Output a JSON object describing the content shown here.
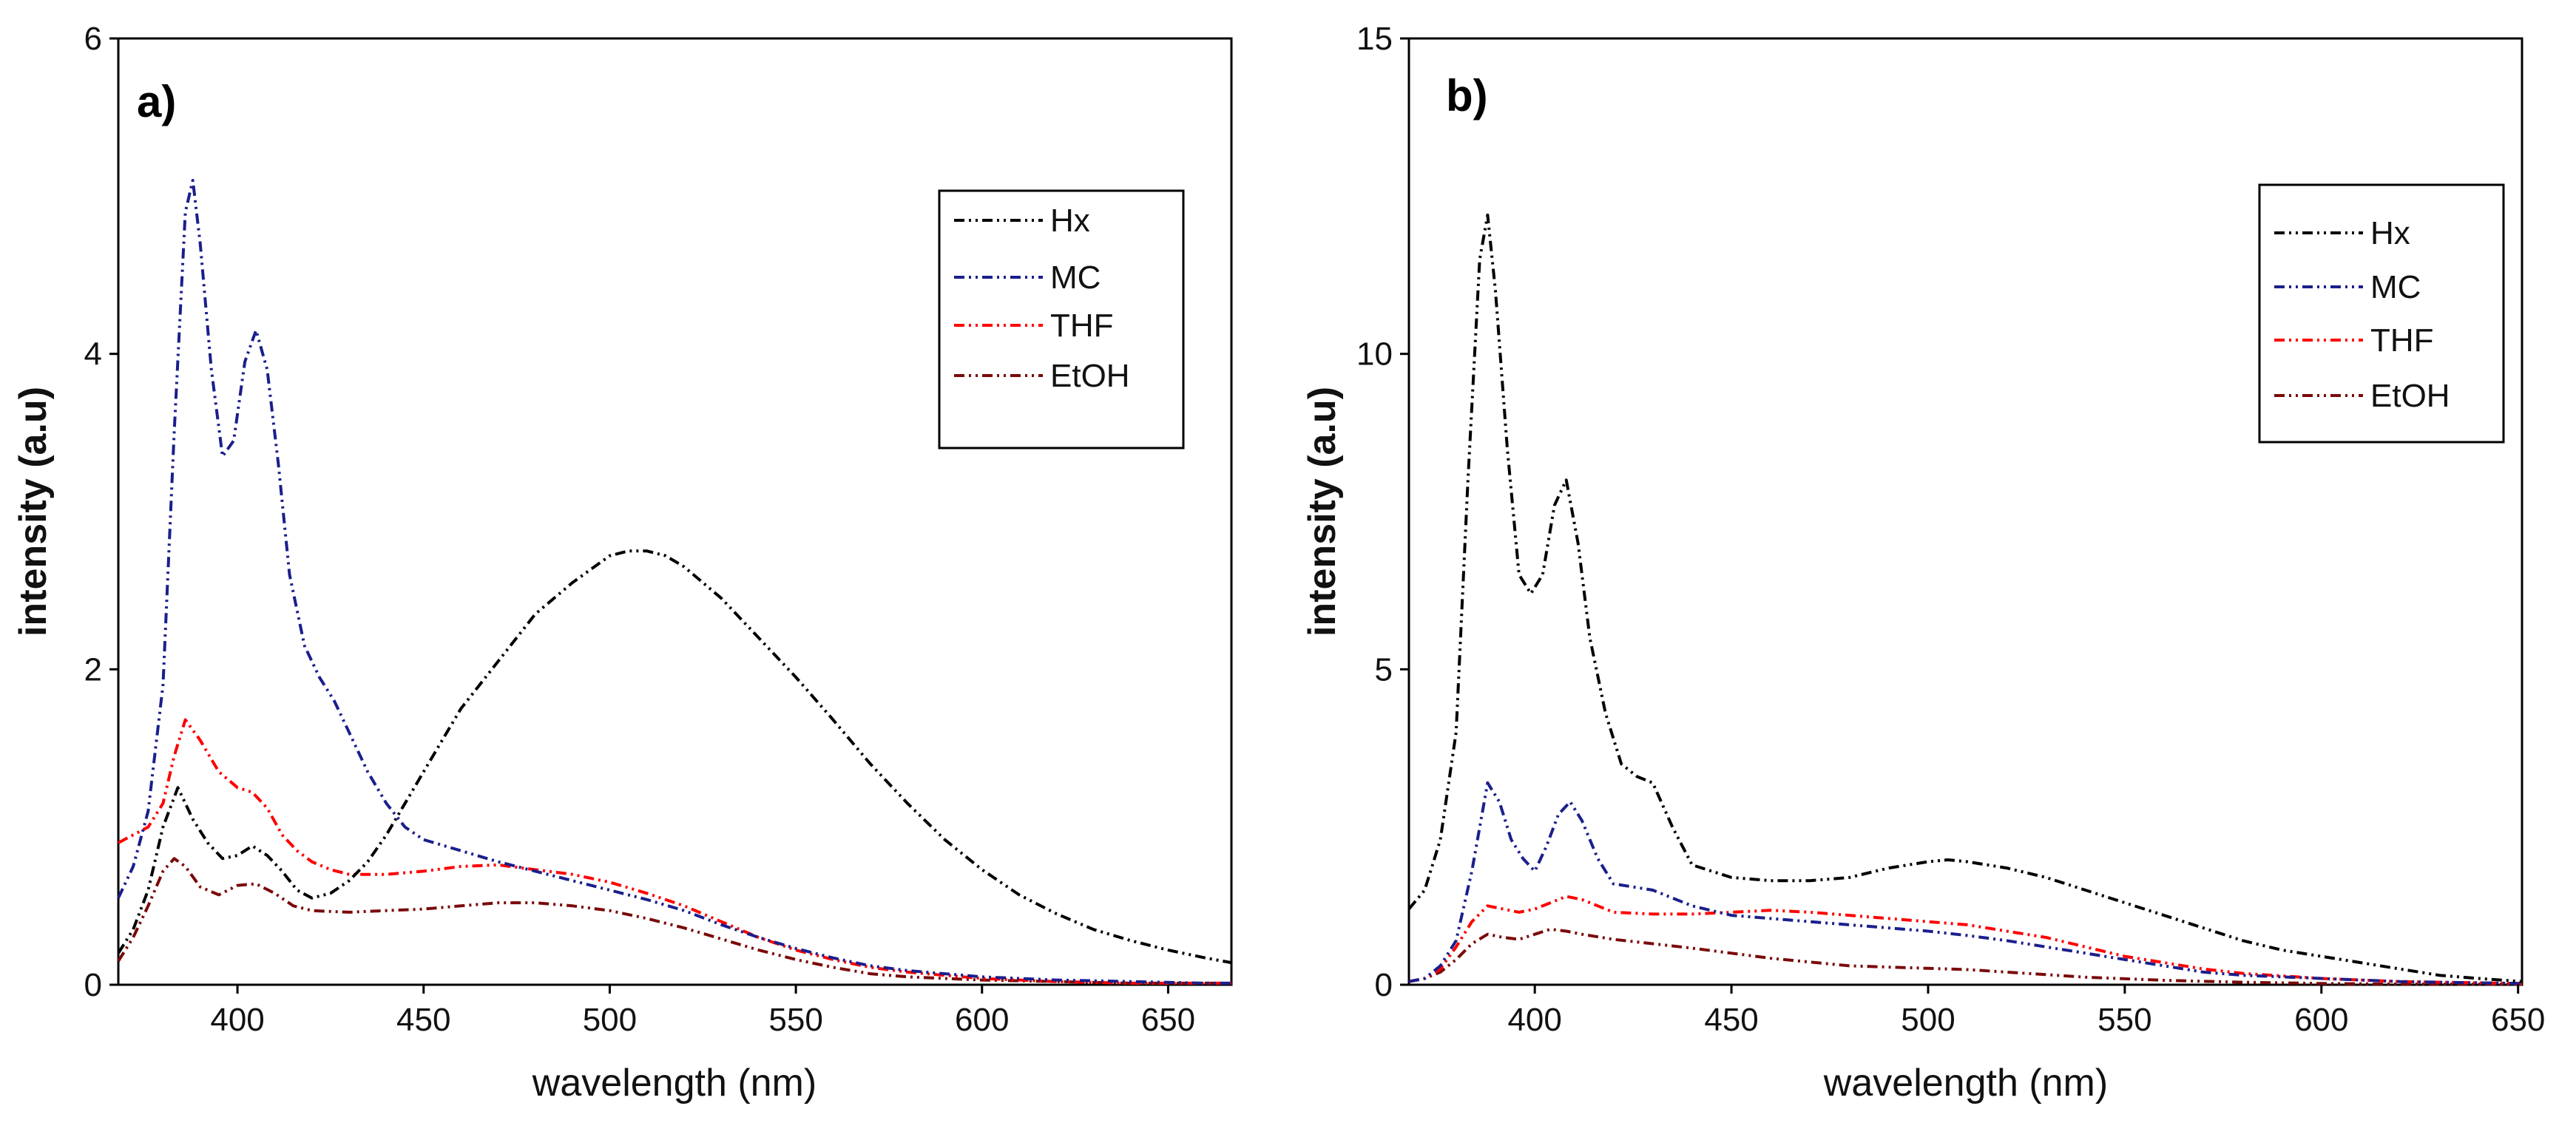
{
  "colors": {
    "Hx": "#000000",
    "MC": "#1a1f8c",
    "THF": "#ff0000",
    "EtOH": "#7a0a0a"
  },
  "chart_data": [
    {
      "type": "line",
      "panel_label": "a)",
      "xlabel": "wavelength (nm)",
      "ylabel": "intensity (a.u)",
      "xlim": [
        368,
        667
      ],
      "ylim": [
        0,
        6
      ],
      "xticks": [
        400,
        450,
        500,
        550,
        600,
        650
      ],
      "yticks": [
        0,
        2,
        4,
        6
      ],
      "x_tick_labels": [
        "400",
        "450",
        "500",
        "550",
        "600",
        "650"
      ],
      "y_tick_labels": [
        "0",
        "2",
        "4",
        "6"
      ],
      "legend": [
        "Hx",
        "MC",
        "THF",
        "EtOH"
      ],
      "series": [
        {
          "name": "Hx",
          "x": [
            368,
            372,
            376,
            380,
            384,
            388,
            392,
            396,
            400,
            404,
            408,
            412,
            416,
            420,
            425,
            430,
            435,
            440,
            445,
            450,
            455,
            460,
            470,
            480,
            490,
            500,
            505,
            510,
            515,
            520,
            530,
            540,
            550,
            560,
            570,
            580,
            590,
            600,
            610,
            620,
            630,
            640,
            650,
            660,
            667
          ],
          "y": [
            0.2,
            0.35,
            0.6,
            1.0,
            1.25,
            1.05,
            0.9,
            0.8,
            0.82,
            0.88,
            0.82,
            0.72,
            0.6,
            0.55,
            0.58,
            0.66,
            0.78,
            0.95,
            1.15,
            1.35,
            1.55,
            1.75,
            2.05,
            2.35,
            2.55,
            2.72,
            2.75,
            2.75,
            2.72,
            2.65,
            2.45,
            2.2,
            1.95,
            1.68,
            1.4,
            1.15,
            0.92,
            0.73,
            0.57,
            0.45,
            0.35,
            0.28,
            0.22,
            0.17,
            0.14
          ]
        },
        {
          "name": "MC",
          "x": [
            368,
            372,
            376,
            380,
            383,
            386,
            388,
            390,
            393,
            396,
            399,
            402,
            405,
            408,
            411,
            414,
            418,
            422,
            426,
            430,
            435,
            440,
            445,
            450,
            460,
            470,
            480,
            490,
            500,
            510,
            520,
            530,
            540,
            550,
            560,
            570,
            580,
            590,
            600,
            620,
            640,
            660,
            667
          ],
          "y": [
            0.55,
            0.75,
            1.1,
            1.9,
            3.5,
            4.9,
            5.1,
            4.7,
            3.9,
            3.35,
            3.45,
            3.95,
            4.15,
            3.9,
            3.3,
            2.6,
            2.15,
            1.95,
            1.8,
            1.6,
            1.35,
            1.15,
            1.0,
            0.92,
            0.85,
            0.78,
            0.72,
            0.66,
            0.6,
            0.54,
            0.47,
            0.38,
            0.3,
            0.23,
            0.17,
            0.12,
            0.09,
            0.07,
            0.05,
            0.03,
            0.02,
            0.01,
            0.01
          ]
        },
        {
          "name": "THF",
          "x": [
            368,
            372,
            376,
            380,
            383,
            386,
            390,
            395,
            400,
            404,
            408,
            412,
            416,
            420,
            425,
            430,
            440,
            450,
            460,
            470,
            480,
            490,
            500,
            510,
            520,
            530,
            540,
            550,
            560,
            570,
            580,
            590,
            600,
            620,
            640,
            660,
            667
          ],
          "y": [
            0.9,
            0.95,
            1.0,
            1.15,
            1.45,
            1.68,
            1.55,
            1.35,
            1.25,
            1.22,
            1.12,
            0.95,
            0.85,
            0.78,
            0.73,
            0.7,
            0.7,
            0.72,
            0.75,
            0.76,
            0.73,
            0.7,
            0.65,
            0.58,
            0.5,
            0.4,
            0.3,
            0.22,
            0.16,
            0.11,
            0.08,
            0.06,
            0.04,
            0.02,
            0.01,
            0.01,
            0.01
          ]
        },
        {
          "name": "EtOH",
          "x": [
            368,
            372,
            376,
            380,
            383,
            386,
            390,
            395,
            400,
            405,
            410,
            415,
            420,
            430,
            440,
            450,
            460,
            470,
            480,
            490,
            500,
            510,
            520,
            530,
            540,
            550,
            560,
            570,
            580,
            600,
            620,
            640,
            660,
            667
          ],
          "y": [
            0.15,
            0.3,
            0.5,
            0.72,
            0.8,
            0.75,
            0.62,
            0.57,
            0.63,
            0.64,
            0.58,
            0.5,
            0.47,
            0.46,
            0.47,
            0.48,
            0.5,
            0.52,
            0.52,
            0.5,
            0.47,
            0.42,
            0.36,
            0.29,
            0.22,
            0.16,
            0.11,
            0.07,
            0.05,
            0.03,
            0.02,
            0.01,
            0.01,
            0.01
          ]
        }
      ]
    },
    {
      "type": "line",
      "panel_label": "b)",
      "xlabel": "wavelength (nm)",
      "ylabel": "intensity (a.u)",
      "xlim": [
        368,
        651
      ],
      "ylim": [
        0,
        15
      ],
      "xticks": [
        400,
        450,
        500,
        550,
        600,
        650
      ],
      "yticks": [
        0,
        5,
        10,
        15
      ],
      "x_tick_labels": [
        "400",
        "450",
        "500",
        "550",
        "600",
        "650"
      ],
      "y_tick_labels": [
        "0",
        "5",
        "10",
        "15"
      ],
      "legend": [
        "Hx",
        "MC",
        "THF",
        "EtOH"
      ],
      "series": [
        {
          "name": "Hx",
          "x": [
            368,
            372,
            376,
            380,
            383,
            386,
            388,
            390,
            393,
            396,
            399,
            402,
            405,
            408,
            411,
            414,
            418,
            422,
            426,
            430,
            435,
            440,
            450,
            460,
            470,
            480,
            490,
            500,
            505,
            510,
            520,
            530,
            540,
            550,
            560,
            570,
            580,
            590,
            600,
            610,
            620,
            630,
            640,
            651
          ],
          "y": [
            1.2,
            1.5,
            2.3,
            4.0,
            8.0,
            11.5,
            12.2,
            11.0,
            8.5,
            6.5,
            6.2,
            6.5,
            7.6,
            8.0,
            7.0,
            5.5,
            4.3,
            3.5,
            3.3,
            3.2,
            2.5,
            1.9,
            1.7,
            1.65,
            1.65,
            1.7,
            1.85,
            1.95,
            1.98,
            1.95,
            1.85,
            1.7,
            1.5,
            1.3,
            1.1,
            0.9,
            0.7,
            0.55,
            0.45,
            0.35,
            0.25,
            0.15,
            0.1,
            0.05
          ]
        },
        {
          "name": "MC",
          "x": [
            368,
            372,
            376,
            380,
            384,
            388,
            391,
            394,
            397,
            400,
            403,
            406,
            409,
            412,
            416,
            420,
            425,
            430,
            440,
            450,
            460,
            470,
            480,
            490,
            500,
            510,
            520,
            530,
            540,
            550,
            560,
            570,
            580,
            600,
            620,
            640,
            651
          ],
          "y": [
            0.05,
            0.1,
            0.3,
            0.7,
            1.8,
            3.2,
            2.9,
            2.3,
            2.0,
            1.8,
            2.2,
            2.7,
            2.9,
            2.6,
            2.0,
            1.6,
            1.55,
            1.5,
            1.25,
            1.1,
            1.05,
            1.0,
            0.95,
            0.9,
            0.85,
            0.78,
            0.7,
            0.6,
            0.5,
            0.4,
            0.3,
            0.2,
            0.15,
            0.1,
            0.05,
            0.03,
            0.02
          ]
        },
        {
          "name": "THF",
          "x": [
            368,
            372,
            376,
            380,
            384,
            388,
            392,
            396,
            400,
            404,
            408,
            412,
            416,
            420,
            430,
            440,
            450,
            460,
            470,
            480,
            490,
            500,
            510,
            520,
            530,
            540,
            550,
            560,
            570,
            580,
            600,
            620,
            640,
            651
          ],
          "y": [
            0.05,
            0.1,
            0.25,
            0.6,
            1.0,
            1.25,
            1.2,
            1.15,
            1.2,
            1.3,
            1.4,
            1.35,
            1.25,
            1.15,
            1.12,
            1.12,
            1.15,
            1.18,
            1.15,
            1.1,
            1.05,
            1.0,
            0.95,
            0.85,
            0.75,
            0.6,
            0.45,
            0.35,
            0.25,
            0.18,
            0.1,
            0.05,
            0.03,
            0.02
          ]
        },
        {
          "name": "EtOH",
          "x": [
            368,
            372,
            376,
            380,
            384,
            388,
            392,
            396,
            400,
            404,
            408,
            412,
            420,
            430,
            440,
            450,
            460,
            470,
            480,
            490,
            500,
            510,
            520,
            530,
            540,
            560,
            580,
            600,
            620,
            640,
            651
          ],
          "y": [
            0.05,
            0.1,
            0.2,
            0.4,
            0.65,
            0.8,
            0.75,
            0.72,
            0.8,
            0.88,
            0.85,
            0.8,
            0.72,
            0.65,
            0.58,
            0.5,
            0.42,
            0.36,
            0.3,
            0.28,
            0.26,
            0.24,
            0.2,
            0.16,
            0.12,
            0.07,
            0.04,
            0.02,
            0.01,
            0.01,
            0.01
          ]
        }
      ]
    }
  ]
}
